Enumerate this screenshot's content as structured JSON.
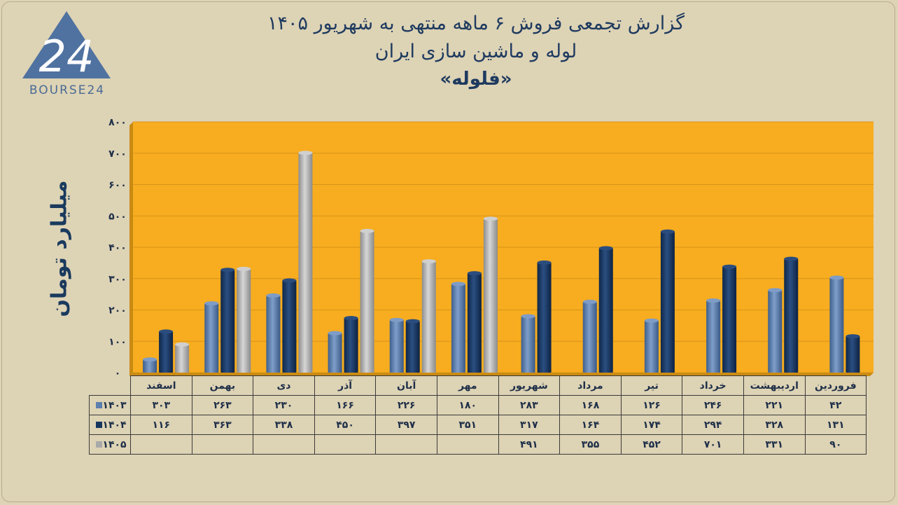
{
  "logo": {
    "mark": "24",
    "text": "BOURSE24"
  },
  "title": {
    "line1": "گزارش تجمعی فروش ۶ ماهه منتهی به شهریور ۱۴۰۵",
    "line2": "لوله و ماشین سازی ایران",
    "line3": "«فلوله»"
  },
  "colors": {
    "background": "#ddd3b5",
    "plot": "#f7ad1f",
    "series_1403": "#5b7fae",
    "series_1404": "#16365f",
    "series_1405": "#a9a9a9",
    "title": "#1e3a5f"
  },
  "chart_data": {
    "type": "bar",
    "ylabel": "میلیارد تومان",
    "ylim": [
      0,
      800
    ],
    "yticks": [
      "۰",
      "۱۰۰",
      "۲۰۰",
      "۳۰۰",
      "۴۰۰",
      "۵۰۰",
      "۶۰۰",
      "۷۰۰",
      "۸۰۰"
    ],
    "grid": true,
    "categories": [
      "فروردین",
      "اردیبهشت",
      "خرداد",
      "تیر",
      "مرداد",
      "شهریور",
      "مهر",
      "آبان",
      "آذر",
      "دی",
      "بهمن",
      "اسفند"
    ],
    "series": [
      {
        "name": "۱۴۰۳",
        "values": [
          42,
          221,
          246,
          126,
          168,
          283,
          180,
          226,
          166,
          230,
          263,
          303
        ],
        "labels": [
          "۴۲",
          "۲۲۱",
          "۲۴۶",
          "۱۲۶",
          "۱۶۸",
          "۲۸۳",
          "۱۸۰",
          "۲۲۶",
          "۱۶۶",
          "۲۳۰",
          "۲۶۳",
          "۳۰۳"
        ]
      },
      {
        "name": "۱۴۰۴",
        "values": [
          131,
          328,
          294,
          174,
          164,
          317,
          351,
          397,
          450,
          338,
          363,
          116
        ],
        "labels": [
          "۱۳۱",
          "۳۲۸",
          "۲۹۴",
          "۱۷۴",
          "۱۶۴",
          "۳۱۷",
          "۳۵۱",
          "۳۹۷",
          "۴۵۰",
          "۳۳۸",
          "۳۶۳",
          "۱۱۶"
        ]
      },
      {
        "name": "۱۴۰۵",
        "values": [
          90,
          331,
          701,
          452,
          355,
          491,
          null,
          null,
          null,
          null,
          null,
          null
        ],
        "labels": [
          "۹۰",
          "۳۳۱",
          "۷۰۱",
          "۴۵۲",
          "۳۵۵",
          "۴۹۱",
          "",
          "",
          "",
          "",
          "",
          ""
        ]
      }
    ]
  }
}
